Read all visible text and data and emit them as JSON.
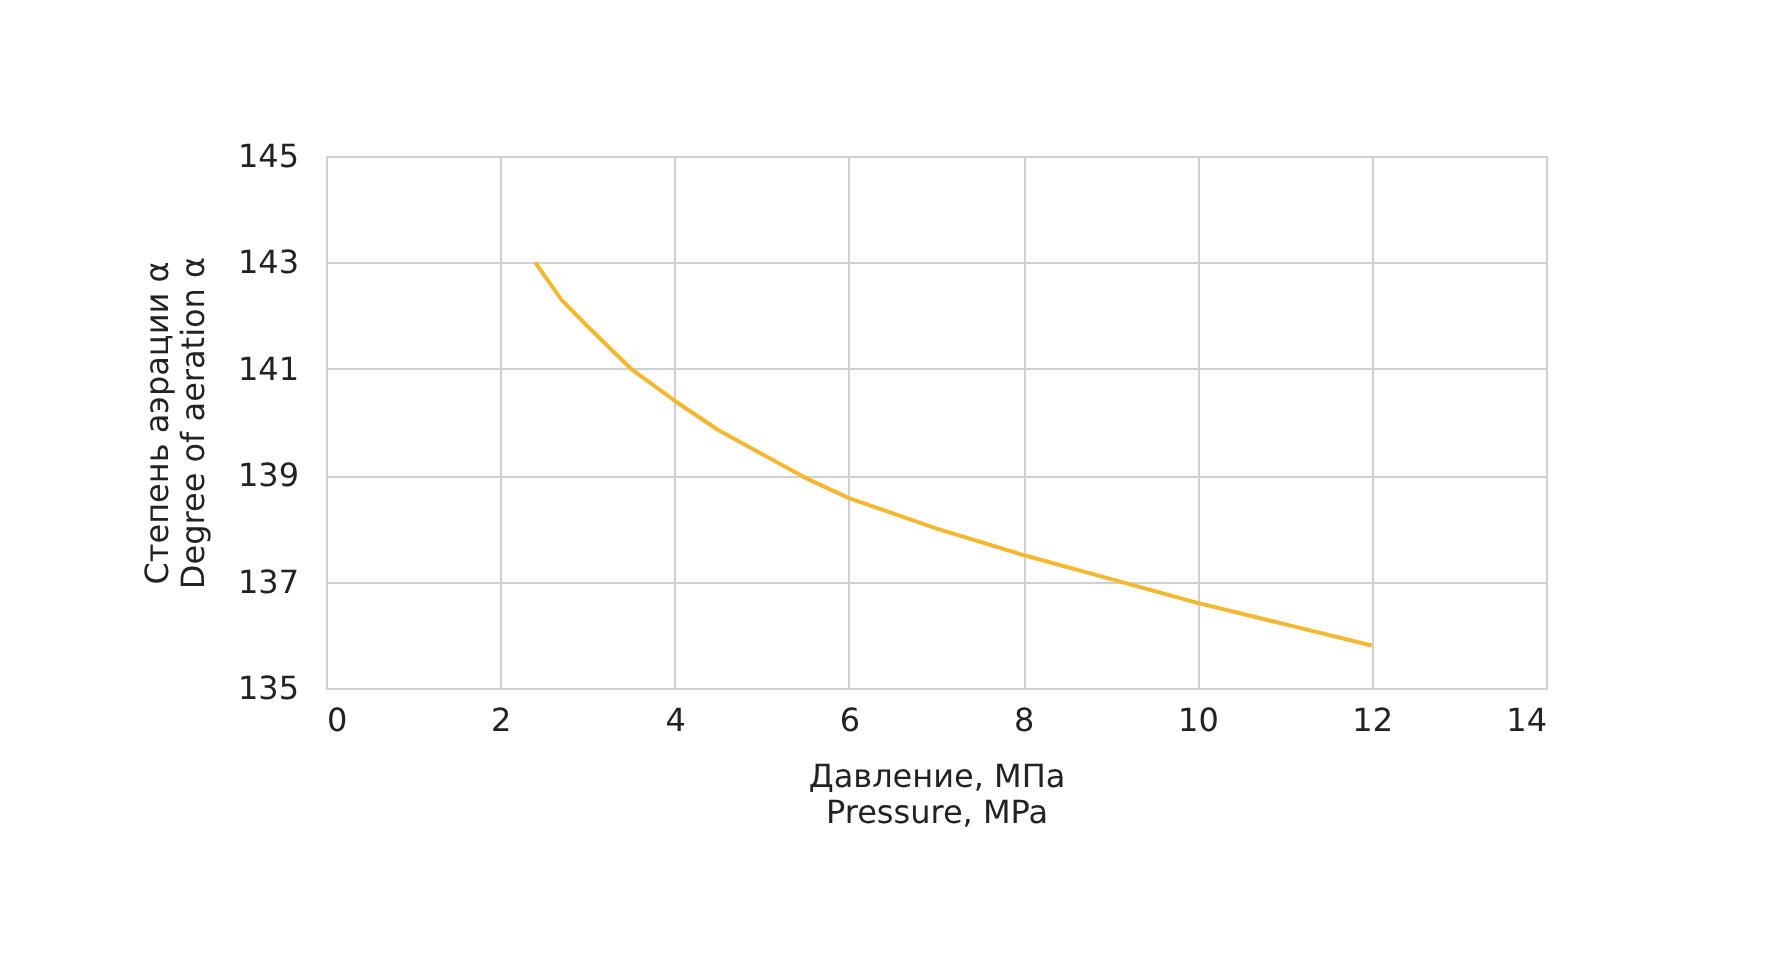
{
  "chart_data": {
    "type": "line",
    "xlabel": "Давление, МПа\nPressure, MPa",
    "ylabel": "Степень аэрации α\nDegree of aeration α",
    "series": [
      {
        "color": "#f5b731",
        "x": [
          2.4,
          2.7,
          3,
          3.5,
          4,
          4.5,
          5,
          5.5,
          6,
          7,
          8,
          9,
          10,
          11,
          12
        ],
        "values": [
          143.0,
          142.3,
          141.8,
          141.0,
          140.4,
          139.85,
          139.4,
          138.95,
          138.57,
          138.0,
          137.5,
          137.05,
          136.6,
          136.2,
          135.8
        ]
      }
    ],
    "xlim": [
      0,
      14
    ],
    "xticks": [
      0,
      2,
      4,
      6,
      8,
      10,
      12,
      14
    ],
    "ylim": [
      135,
      145
    ],
    "yticks": [
      135,
      137,
      139,
      141,
      143,
      145
    ],
    "grid": true,
    "marker": "none",
    "line_style": "solid",
    "legend": false
  }
}
